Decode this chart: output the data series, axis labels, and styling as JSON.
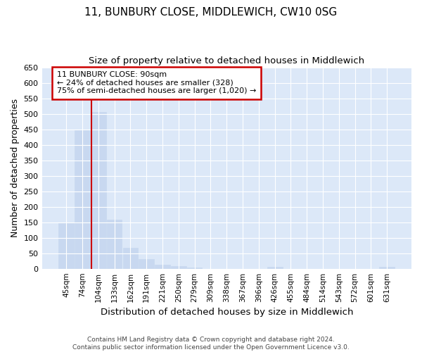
{
  "title": "11, BUNBURY CLOSE, MIDDLEWICH, CW10 0SG",
  "subtitle": "Size of property relative to detached houses in Middlewich",
  "xlabel": "Distribution of detached houses by size in Middlewich",
  "ylabel": "Number of detached properties",
  "footer_line1": "Contains HM Land Registry data © Crown copyright and database right 2024.",
  "footer_line2": "Contains public sector information licensed under the Open Government Licence v3.0.",
  "categories": [
    "45sqm",
    "74sqm",
    "104sqm",
    "133sqm",
    "162sqm",
    "191sqm",
    "221sqm",
    "250sqm",
    "279sqm",
    "309sqm",
    "338sqm",
    "367sqm",
    "396sqm",
    "426sqm",
    "455sqm",
    "484sqm",
    "514sqm",
    "543sqm",
    "572sqm",
    "601sqm",
    "631sqm"
  ],
  "values": [
    148,
    450,
    507,
    158,
    68,
    31,
    13,
    8,
    4,
    0,
    0,
    0,
    0,
    6,
    0,
    0,
    0,
    0,
    0,
    0,
    6
  ],
  "bar_color": "#c8d8f0",
  "bar_edge_color": "#c8d8f0",
  "annotation_text_line1": "11 BUNBURY CLOSE: 90sqm",
  "annotation_text_line2": "← 24% of detached houses are smaller (328)",
  "annotation_text_line3": "75% of semi-detached houses are larger (1,020) →",
  "vline_color": "#cc0000",
  "annotation_box_color": "#cc0000",
  "ylim": [
    0,
    650
  ],
  "yticks": [
    0,
    50,
    100,
    150,
    200,
    250,
    300,
    350,
    400,
    450,
    500,
    550,
    600,
    650
  ],
  "background_color": "#dce8f8",
  "grid_color": "#ffffff",
  "fig_background": "#ffffff"
}
